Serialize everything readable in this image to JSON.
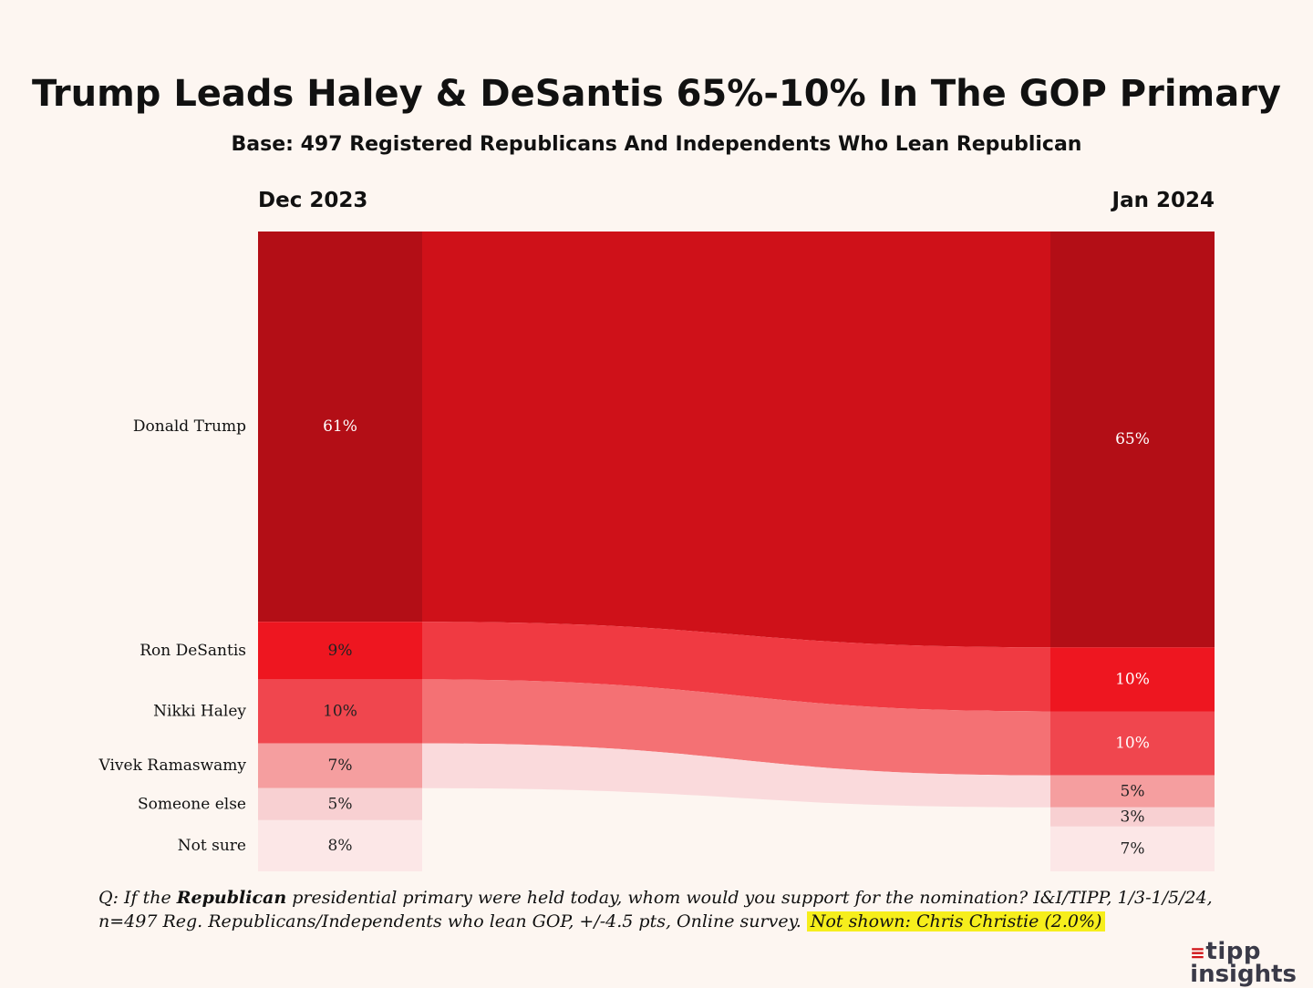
{
  "title": "Trump Leads Haley & DeSantis 65%-10% In The GOP Primary",
  "subtitle": "Base: 497 Registered Republicans And Independents Who Lean Republican",
  "footnote": {
    "q_prefix": "Q:  If the ",
    "q_bold": "Republican",
    "q_rest": "  presidential primary were held today, whom would you support for the nomination? I&I/TIPP, 1/3-1/5/24, n=497 Reg. Republicans/Independents who lean GOP, +/-4.5 pts, Online survey. ",
    "highlight": "Not shown: Chris Christie (2.0%)"
  },
  "logo": {
    "line1": "tipp",
    "line2": "insights",
    "mark": "≡"
  },
  "colors": {
    "trump": "#b30e16",
    "desantis": "#ee1620",
    "haley": "#f0464e",
    "ramaswamy": "#f59e9f",
    "someone_else": "#f8d0d2",
    "not_sure": "#fce7e7",
    "flow_trump": "#cf1119",
    "flow_desantis": "#f03a42",
    "flow_haley": "#f47174",
    "flow_ramaswamy": "#fadadc",
    "background": "#fdf6f1"
  },
  "chart_data": {
    "type": "sankey",
    "periods": [
      "Dec 2023",
      "Jan 2024"
    ],
    "categories": [
      "Donald Trump",
      "Ron DeSantis",
      "Nikki Haley",
      "Vivek Ramaswamy",
      "Someone else",
      "Not sure"
    ],
    "dec_2023": [
      61,
      9,
      10,
      7,
      5,
      8
    ],
    "jan_2024": [
      65,
      10,
      10,
      5,
      3,
      7
    ],
    "dec_labels": [
      "61%",
      "9%",
      "10%",
      "7%",
      "5%",
      "8%"
    ],
    "jan_labels": [
      "65%",
      "10%",
      "10%",
      "5%",
      "3%",
      "7%"
    ]
  }
}
